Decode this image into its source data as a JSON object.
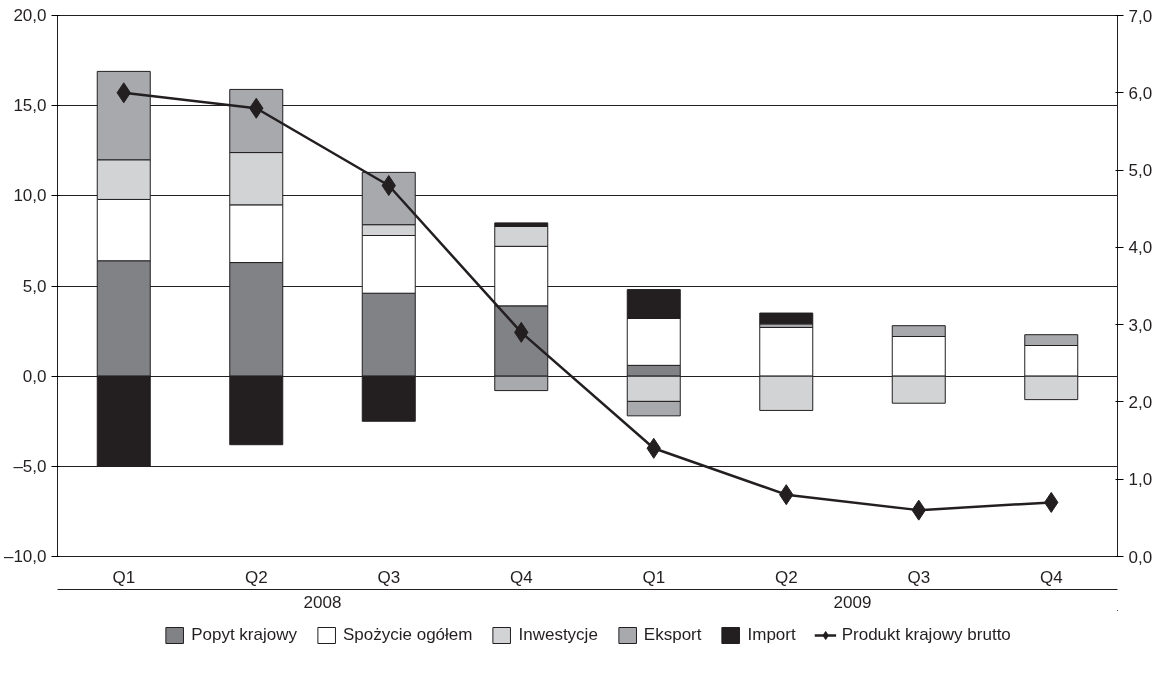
{
  "chart_data": {
    "type": "bar",
    "stacked": true,
    "categories": [
      "Q1",
      "Q2",
      "Q3",
      "Q4",
      "Q1",
      "Q2",
      "Q3",
      "Q4"
    ],
    "annotations": [
      "2008",
      "2009"
    ],
    "series": [
      {
        "name": "Popyt krajowy",
        "color": "#808285",
        "values": [
          6.4,
          6.3,
          4.6,
          3.9,
          0.6,
          null,
          null,
          null
        ]
      },
      {
        "name": "Spożycie ogółem",
        "color": "#ffffff",
        "values": [
          3.4,
          3.2,
          3.2,
          3.3,
          2.6,
          2.7,
          2.2,
          1.7
        ]
      },
      {
        "name": "Inwestycje",
        "color": "#d1d3d4",
        "values": [
          2.2,
          2.9,
          0.6,
          1.1,
          -1.4,
          -1.9,
          -1.5,
          -1.3
        ]
      },
      {
        "name": "Eksport",
        "color": "#a7a9ac",
        "values": [
          4.9,
          3.5,
          2.9,
          -0.8,
          -0.8,
          0.2,
          0.6,
          0.6
        ]
      },
      {
        "name": "Import",
        "color": "#231f20",
        "values": [
          -5.0,
          -3.8,
          -2.5,
          0.2,
          1.6,
          0.6,
          null,
          null
        ]
      },
      {
        "name": "Produkt krajowy brutto",
        "type": "line",
        "axis": "y2",
        "color": "#231f20",
        "marker": "diamond",
        "line_style": "solid",
        "values": [
          6.0,
          5.8,
          4.8,
          2.9,
          1.4,
          0.8,
          0.6,
          0.7
        ]
      }
    ],
    "ylim": [
      -10,
      20
    ],
    "yticks": [
      {
        "value": -10,
        "label": "–10,0"
      },
      {
        "value": -5,
        "label": "–5,0"
      },
      {
        "value": 0,
        "label": "0,0"
      },
      {
        "value": 5,
        "label": "5,0"
      },
      {
        "value": 10,
        "label": "10,0"
      },
      {
        "value": 15,
        "label": "15,0"
      },
      {
        "value": 20,
        "label": "20,0"
      }
    ],
    "y2lim": [
      0,
      7
    ],
    "y2ticks": [
      {
        "value": 0,
        "label": "0,0"
      },
      {
        "value": 1,
        "label": "1,0"
      },
      {
        "value": 2,
        "label": "2,0"
      },
      {
        "value": 3,
        "label": "3,0"
      },
      {
        "value": 4,
        "label": "4,0"
      },
      {
        "value": 5,
        "label": "5,0"
      },
      {
        "value": 6,
        "label": "6,0"
      },
      {
        "value": 7,
        "label": "7,0"
      }
    ],
    "grid": "y",
    "legend": "bottom"
  }
}
